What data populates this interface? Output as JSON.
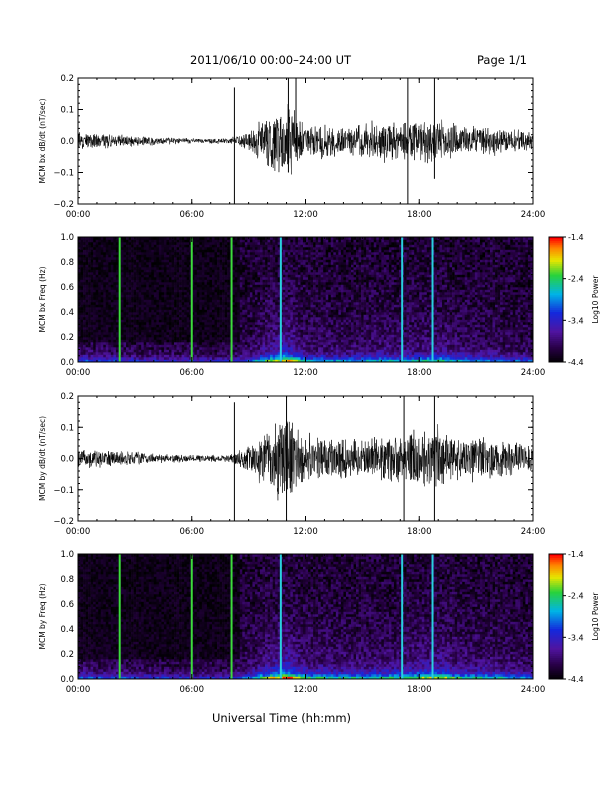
{
  "header": {
    "title": "2011/06/10  00:00–24:00 UT",
    "page": "Page 1/1"
  },
  "footer": {
    "xlabel": "Universal Time (hh:mm)"
  },
  "chart_data": [
    {
      "type": "line",
      "ylabel": "MCM bx dB/dt (nT/sec)",
      "xlim": [
        0,
        24
      ],
      "ylim": [
        -0.2,
        0.2
      ],
      "yticks": [
        "0.2",
        "0.1",
        "0.0",
        "−0.1",
        "−0.2"
      ],
      "xticks": [
        "00:00",
        "06:00",
        "12:00",
        "18:00",
        "24:00"
      ],
      "envelope": [
        {
          "hour": 0,
          "amp": 0.025
        },
        {
          "hour": 2,
          "amp": 0.02
        },
        {
          "hour": 4,
          "amp": 0.012
        },
        {
          "hour": 6,
          "amp": 0.008
        },
        {
          "hour": 8,
          "amp": 0.008
        },
        {
          "hour": 9,
          "amp": 0.03
        },
        {
          "hour": 10,
          "amp": 0.08
        },
        {
          "hour": 11,
          "amp": 0.12
        },
        {
          "hour": 12,
          "amp": 0.05
        },
        {
          "hour": 13,
          "amp": 0.05
        },
        {
          "hour": 14,
          "amp": 0.04
        },
        {
          "hour": 15,
          "amp": 0.05
        },
        {
          "hour": 16,
          "amp": 0.06
        },
        {
          "hour": 17,
          "amp": 0.05
        },
        {
          "hour": 18,
          "amp": 0.06
        },
        {
          "hour": 19,
          "amp": 0.07
        },
        {
          "hour": 20,
          "amp": 0.05
        },
        {
          "hour": 22,
          "amp": 0.04
        },
        {
          "hour": 24,
          "amp": 0.025
        }
      ],
      "spikes": [
        {
          "hour": 8.25,
          "high": 0.17,
          "low": -0.21
        },
        {
          "hour": 11.1,
          "high": 0.21,
          "low": -0.1
        },
        {
          "hour": 11.5,
          "high": 0.21,
          "low": -0.05
        },
        {
          "hour": 17.4,
          "high": 0.21,
          "low": -0.21
        },
        {
          "hour": 18.8,
          "high": 0.21,
          "low": -0.12
        }
      ]
    },
    {
      "type": "heatmap",
      "ylabel": "MCM bx Freq (Hz)",
      "xlim": [
        0,
        24
      ],
      "ylim": [
        0.0,
        1.0
      ],
      "yticks": [
        "1.0",
        "0.8",
        "0.6",
        "0.4",
        "0.2",
        "0.0"
      ],
      "xticks": [
        "00:00",
        "06:00",
        "12:00",
        "18:00",
        "24:00"
      ],
      "colorbar": {
        "label": "Log10 Power",
        "range": [
          -4.4,
          -1.4
        ],
        "ticks": [
          "-1.4",
          "-2.4",
          "-3.4",
          "-4.4"
        ]
      },
      "lines": [
        {
          "hour": 2.2,
          "color": "#3ddc3d"
        },
        {
          "hour": 6.0,
          "color": "#3ddc3d"
        },
        {
          "hour": 8.1,
          "color": "#3ddc3d"
        },
        {
          "hour": 10.7,
          "color": "#2ad0e0"
        },
        {
          "hour": 17.1,
          "color": "#2ad0e0"
        },
        {
          "hour": 18.7,
          "color": "#2ad0e0"
        }
      ]
    },
    {
      "type": "line",
      "ylabel": "MCM by dB/dt (nT/sec)",
      "xlim": [
        0,
        24
      ],
      "ylim": [
        -0.2,
        0.2
      ],
      "yticks": [
        "0.2",
        "0.1",
        "0.0",
        "−0.1",
        "−0.2"
      ],
      "xticks": [
        "00:00",
        "06:00",
        "12:00",
        "18:00",
        "24:00"
      ],
      "envelope": [
        {
          "hour": 0,
          "amp": 0.03
        },
        {
          "hour": 2,
          "amp": 0.025
        },
        {
          "hour": 4,
          "amp": 0.015
        },
        {
          "hour": 6,
          "amp": 0.01
        },
        {
          "hour": 8,
          "amp": 0.01
        },
        {
          "hour": 9,
          "amp": 0.04
        },
        {
          "hour": 10,
          "amp": 0.09
        },
        {
          "hour": 11,
          "amp": 0.14
        },
        {
          "hour": 12,
          "amp": 0.07
        },
        {
          "hour": 13,
          "amp": 0.07
        },
        {
          "hour": 14,
          "amp": 0.06
        },
        {
          "hour": 15,
          "amp": 0.06
        },
        {
          "hour": 16,
          "amp": 0.07
        },
        {
          "hour": 17,
          "amp": 0.07
        },
        {
          "hour": 18,
          "amp": 0.09
        },
        {
          "hour": 19,
          "amp": 0.1
        },
        {
          "hour": 20,
          "amp": 0.07
        },
        {
          "hour": 22,
          "amp": 0.06
        },
        {
          "hour": 24,
          "amp": 0.04
        }
      ],
      "spikes": [
        {
          "hour": 8.25,
          "high": 0.18,
          "low": -0.21
        },
        {
          "hour": 11.0,
          "high": 0.21,
          "low": -0.21
        },
        {
          "hour": 17.2,
          "high": 0.21,
          "low": -0.21
        },
        {
          "hour": 18.8,
          "high": 0.21,
          "low": -0.21
        }
      ]
    },
    {
      "type": "heatmap",
      "ylabel": "MCM by Freq (Hz)",
      "xlim": [
        0,
        24
      ],
      "ylim": [
        0.0,
        1.0
      ],
      "yticks": [
        "1.0",
        "0.8",
        "0.6",
        "0.4",
        "0.2",
        "0.0"
      ],
      "xticks": [
        "00:00",
        "06:00",
        "12:00",
        "18:00",
        "24:00"
      ],
      "colorbar": {
        "label": "Log10 Power",
        "range": [
          -4.4,
          -1.4
        ],
        "ticks": [
          "-1.4",
          "-2.4",
          "-3.4",
          "-4.4"
        ]
      },
      "lines": [
        {
          "hour": 2.2,
          "color": "#3ddc3d"
        },
        {
          "hour": 6.0,
          "color": "#3ddc3d"
        },
        {
          "hour": 8.1,
          "color": "#3ddc3d"
        },
        {
          "hour": 10.7,
          "color": "#2ad0e0"
        },
        {
          "hour": 17.1,
          "color": "#2ad0e0"
        },
        {
          "hour": 18.7,
          "color": "#2ad0e0"
        }
      ]
    }
  ]
}
